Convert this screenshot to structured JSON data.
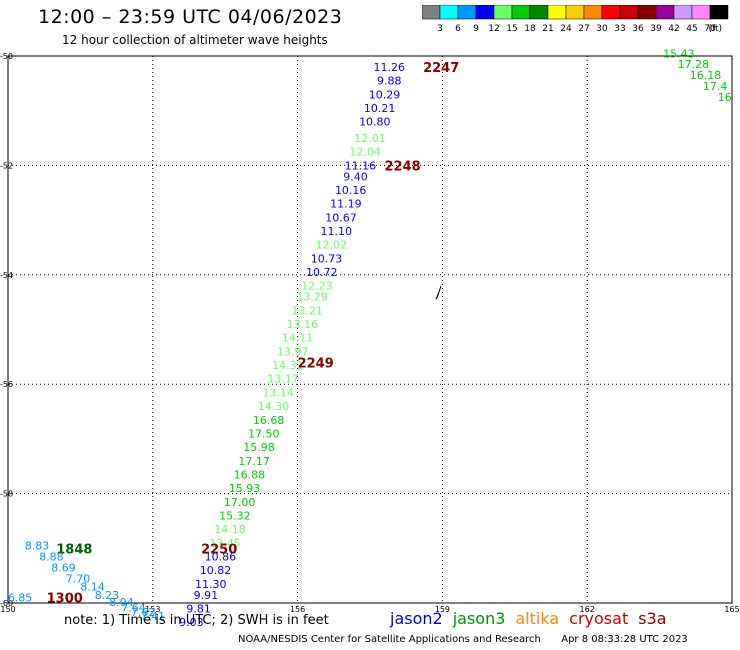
{
  "header": {
    "title": "12:00 – 23:59 UTC 04/06/2023",
    "subtitle": "12 hour collection of altimeter wave heights"
  },
  "legend": {
    "unit": "(ft)",
    "bins": [
      {
        "label": "3",
        "color": "#808080"
      },
      {
        "label": "6",
        "color": "#00ffff"
      },
      {
        "label": "9",
        "color": "#0099ff"
      },
      {
        "label": "12",
        "color": "#0000ff"
      },
      {
        "label": "15",
        "color": "#66ff66"
      },
      {
        "label": "18",
        "color": "#00cc00"
      },
      {
        "label": "21",
        "color": "#008800"
      },
      {
        "label": "24",
        "color": "#ffff00"
      },
      {
        "label": "27",
        "color": "#ffcc00"
      },
      {
        "label": "30",
        "color": "#ff8800"
      },
      {
        "label": "33",
        "color": "#ff0000"
      },
      {
        "label": "36",
        "color": "#cc0000"
      },
      {
        "label": "39",
        "color": "#880000"
      },
      {
        "label": "42",
        "color": "#990099"
      },
      {
        "label": "45",
        "color": "#cc99ff"
      },
      {
        "label": "70",
        "color": "#ff88ff"
      },
      {
        "label": "",
        "color": "#000000"
      }
    ]
  },
  "map": {
    "lon_range": [
      150,
      165
    ],
    "lat_range": [
      -50,
      -60
    ],
    "lon_ticks": [
      "150",
      "153",
      "156",
      "159",
      "162",
      "165"
    ],
    "lat_ticks": [
      "-50",
      "-52",
      "-54",
      "-56",
      "-58",
      "-60"
    ]
  },
  "time_labels": [
    {
      "text": "2247",
      "lon": 158.6,
      "lat": -50.2
    },
    {
      "text": "2248",
      "lon": 157.8,
      "lat": -52.0
    },
    {
      "text": "2249",
      "lon": 156.0,
      "lat": -55.6
    },
    {
      "text": "2250",
      "lon": 154.0,
      "lat": -59.0
    },
    {
      "text": "1848",
      "lon": 151.0,
      "lat": -59.0
    },
    {
      "text": "1300",
      "lon": 150.8,
      "lat": -59.9
    }
  ],
  "measurements": [
    {
      "v": "11.26",
      "lon": 157.9,
      "lat": -50.2
    },
    {
      "v": "9.88",
      "lon": 157.9,
      "lat": -50.45
    },
    {
      "v": "10.29",
      "lon": 157.8,
      "lat": -50.7
    },
    {
      "v": "10.21",
      "lon": 157.7,
      "lat": -50.95
    },
    {
      "v": "10.80",
      "lon": 157.6,
      "lat": -51.2
    },
    {
      "v": "12.01",
      "lon": 157.5,
      "lat": -51.5
    },
    {
      "v": "12.04",
      "lon": 157.4,
      "lat": -51.75
    },
    {
      "v": "11.16",
      "lon": 157.3,
      "lat": -52.0
    },
    {
      "v": "9.40",
      "lon": 157.2,
      "lat": -52.2
    },
    {
      "v": "10.16",
      "lon": 157.1,
      "lat": -52.45
    },
    {
      "v": "11.19",
      "lon": 157.0,
      "lat": -52.7
    },
    {
      "v": "10.67",
      "lon": 156.9,
      "lat": -52.95
    },
    {
      "v": "11.10",
      "lon": 156.8,
      "lat": -53.2
    },
    {
      "v": "12.02",
      "lon": 156.7,
      "lat": -53.45
    },
    {
      "v": "10.73",
      "lon": 156.6,
      "lat": -53.7
    },
    {
      "v": "10.72",
      "lon": 156.5,
      "lat": -53.95
    },
    {
      "v": "12.23",
      "lon": 156.4,
      "lat": -54.2
    },
    {
      "v": "13.29",
      "lon": 156.3,
      "lat": -54.4
    },
    {
      "v": "13.21",
      "lon": 156.2,
      "lat": -54.65
    },
    {
      "v": "13.16",
      "lon": 156.1,
      "lat": -54.9
    },
    {
      "v": "14.11",
      "lon": 156.0,
      "lat": -55.15
    },
    {
      "v": "13.97",
      "lon": 155.9,
      "lat": -55.4
    },
    {
      "v": "14.31",
      "lon": 155.8,
      "lat": -55.65
    },
    {
      "v": "13.17",
      "lon": 155.7,
      "lat": -55.9
    },
    {
      "v": "13.14",
      "lon": 155.6,
      "lat": -56.15
    },
    {
      "v": "14.30",
      "lon": 155.5,
      "lat": -56.4
    },
    {
      "v": "16.68",
      "lon": 155.4,
      "lat": -56.65
    },
    {
      "v": "17.50",
      "lon": 155.3,
      "lat": -56.9
    },
    {
      "v": "15.98",
      "lon": 155.2,
      "lat": -57.15
    },
    {
      "v": "17.17",
      "lon": 155.1,
      "lat": -57.4
    },
    {
      "v": "16.88",
      "lon": 155.0,
      "lat": -57.65
    },
    {
      "v": "15.93",
      "lon": 154.9,
      "lat": -57.9
    },
    {
      "v": "17.00",
      "lon": 154.8,
      "lat": -58.15
    },
    {
      "v": "15.32",
      "lon": 154.7,
      "lat": -58.4
    },
    {
      "v": "14.18",
      "lon": 154.6,
      "lat": -58.65
    },
    {
      "v": "13.45",
      "lon": 154.5,
      "lat": -58.9
    },
    {
      "v": "10.86",
      "lon": 154.4,
      "lat": -59.15
    },
    {
      "v": "10.82",
      "lon": 154.3,
      "lat": -59.4
    },
    {
      "v": "11.30",
      "lon": 154.2,
      "lat": -59.65
    },
    {
      "v": "9.91",
      "lon": 154.1,
      "lat": -59.85
    },
    {
      "v": "9.81",
      "lon": 153.95,
      "lat": -60.1
    },
    {
      "v": "9.03",
      "lon": 153.8,
      "lat": -60.35
    },
    {
      "v": "8.83",
      "lon": 150.6,
      "lat": -58.95
    },
    {
      "v": "8.88",
      "lon": 150.9,
      "lat": -59.15
    },
    {
      "v": "8.69",
      "lon": 151.15,
      "lat": -59.35
    },
    {
      "v": "7.70",
      "lon": 151.45,
      "lat": -59.55
    },
    {
      "v": "8.14",
      "lon": 151.75,
      "lat": -59.7
    },
    {
      "v": "8.23",
      "lon": 152.05,
      "lat": -59.85
    },
    {
      "v": "8.04",
      "lon": 152.35,
      "lat": -59.98
    },
    {
      "v": "7.64",
      "lon": 152.6,
      "lat": -60.08
    },
    {
      "v": "7.62",
      "lon": 152.8,
      "lat": -60.16
    },
    {
      "v": "7.41",
      "lon": 153.0,
      "lat": -60.24
    },
    {
      "v": "6.85",
      "lon": 150.25,
      "lat": -59.9
    },
    {
      "v": "15.43",
      "lon": 163.9,
      "lat": -49.95
    },
    {
      "v": "17.28",
      "lon": 164.2,
      "lat": -50.15
    },
    {
      "v": "16.18",
      "lon": 164.45,
      "lat": -50.35
    },
    {
      "v": "17.4",
      "lon": 164.65,
      "lat": -50.55
    },
    {
      "v": "16",
      "lon": 164.85,
      "lat": -50.75
    }
  ],
  "footer": {
    "note": "note: 1) Time is in UTC; 2) SWH is in feet",
    "satellites": [
      {
        "name": "jason2",
        "color": "#0000dd"
      },
      {
        "name": "jason3",
        "color": "#009900"
      },
      {
        "name": "altika",
        "color": "#ff8800"
      },
      {
        "name": "cryosat",
        "color": "#cc0000"
      },
      {
        "name": "s3a",
        "color": "#880000"
      }
    ],
    "credit": "NOAA/NESDIS Center for Satellite Applications and Research",
    "timestamp": "Apr  8 08:33:28 UTC 2023"
  }
}
